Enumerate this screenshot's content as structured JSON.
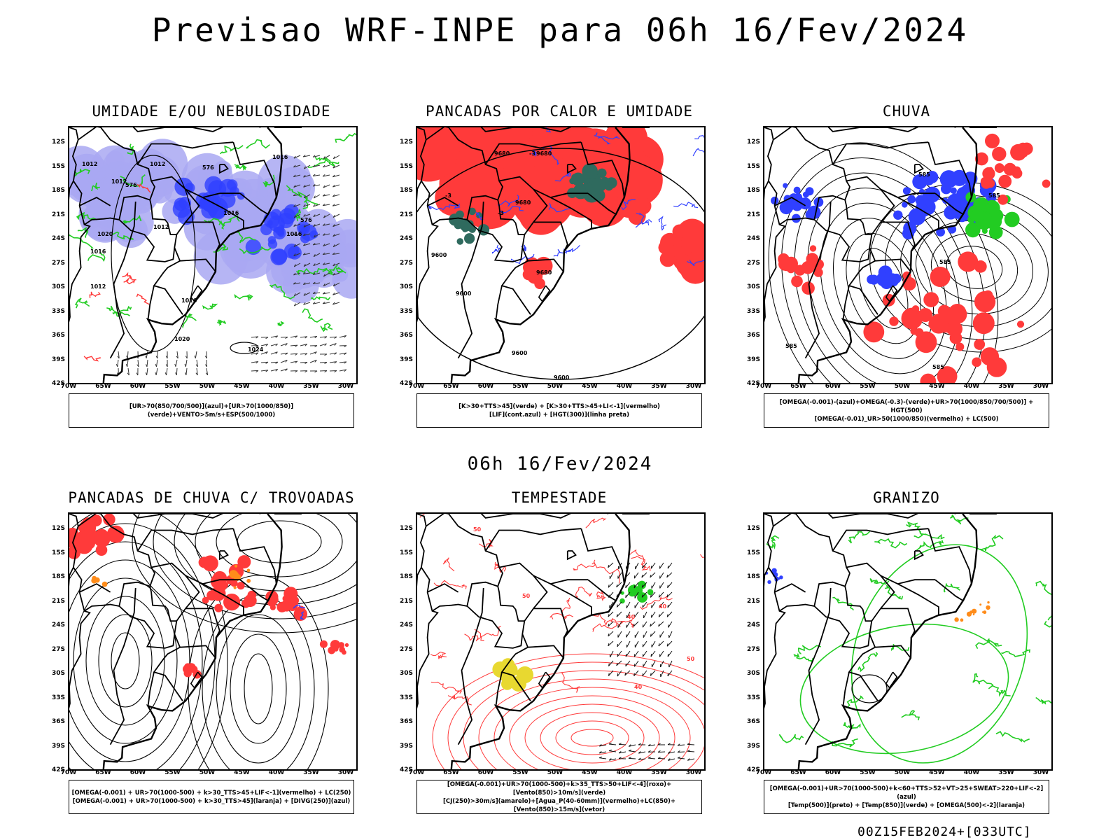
{
  "title": "Previsao WRF-INPE  para 06h 16/Fev/2024",
  "subtitle": "06h 16/Fev/2024",
  "footer": "00Z15FEB2024+[033UTC]",
  "lat_labels": [
    "12S",
    "15S",
    "18S",
    "21S",
    "24S",
    "27S",
    "30S",
    "33S",
    "36S",
    "39S",
    "42S"
  ],
  "lon_labels": [
    "70W",
    "65W",
    "60W",
    "55W",
    "50W",
    "45W",
    "40W",
    "35W",
    "30W"
  ],
  "colors": {
    "blue": "#3040ff",
    "lavender": "#a9a8f2",
    "green": "#22cc22",
    "red": "#ff3a3a",
    "orange": "#ff8c1a",
    "teal": "#2f6a5e",
    "yellow": "#e8d830",
    "black": "#000000"
  },
  "panels": [
    {
      "id": "umidade",
      "title": "UMIDADE E/OU NEBULOSIDADE",
      "legend": [
        "[UR>70(850/700/500)](azul)+[UR>70(1000/850)](verde)+VENTO>5m/s+ESP(500/1000)"
      ],
      "contour_labels": [
        "1012",
        "1012",
        "1012",
        "1016",
        "1012",
        "1016",
        "1020",
        "1016",
        "1012",
        "1016",
        "1016",
        "1024",
        "1020",
        "576",
        "576",
        "576"
      ]
    },
    {
      "id": "pancadas-calor",
      "title": "PANCADAS POR CALOR E UMIDADE",
      "legend": [
        "[K>30+TTS>45](verde) + [K>30+TTS>45+LI<-1](vermelho)",
        "[LIF](cont.azul) + [HGT(300)](linha preta)"
      ],
      "contour_labels": [
        "9680",
        "9680",
        "9680",
        "9600",
        "9600",
        "9600",
        "9600",
        "9680",
        "-3",
        "-3",
        "-3"
      ]
    },
    {
      "id": "chuva",
      "title": "CHUVA",
      "legend": [
        "[OMEGA(-0.001)-(azul)+OMEGA(-0.3)-(verde)+UR>70(1000/850/700/500)] + HGT(500)",
        "[OMEGA(-0.01)_UR>50(1000/850)(vermelho) + LC(500)"
      ],
      "contour_labels": [
        "585",
        "585",
        "585",
        "585",
        "585"
      ]
    },
    {
      "id": "pancadas-trovoadas",
      "title": "PANCADAS DE CHUVA C/ TROVOADAS",
      "legend": [
        "[OMEGA(-0.001) + UR>70(1000-500) + k>30_TTS>45+LIF<-1](vermelho) + LC(250)",
        "[OMEGA(-0.001) + UR>70(1000-500) + k>30_TTS>45](laranja) + [DIVG(250)](azul)"
      ],
      "contour_labels": []
    },
    {
      "id": "tempestade",
      "title": "TEMPESTADE",
      "legend": [
        "[OMEGA(-0.001)+UR>70(1000-500)+k>35_TTS>50+LIF<-4](roxo)+[Vento(850)>10m/s](verde)",
        "[CJ(250)>30m/s](amarelo)+[Agua_P(40-60mm)](vermelho)+LC(850)+[Vento(850)>15m/s](vetor)"
      ],
      "contour_labels": [
        "50",
        "50",
        "40",
        "40",
        "40",
        "50"
      ]
    },
    {
      "id": "granizo",
      "title": "GRANIZO",
      "legend": [
        "[OMEGA(-0.001)+UR>70(1000-500)+k<60+TTS>52+VT>25+SWEAT>220+LIF<-2](azul)",
        "[Temp(500)](preto) + [Temp(850)](verde) + [OMEGA(500)<-2](laranja)"
      ],
      "contour_labels": []
    }
  ]
}
